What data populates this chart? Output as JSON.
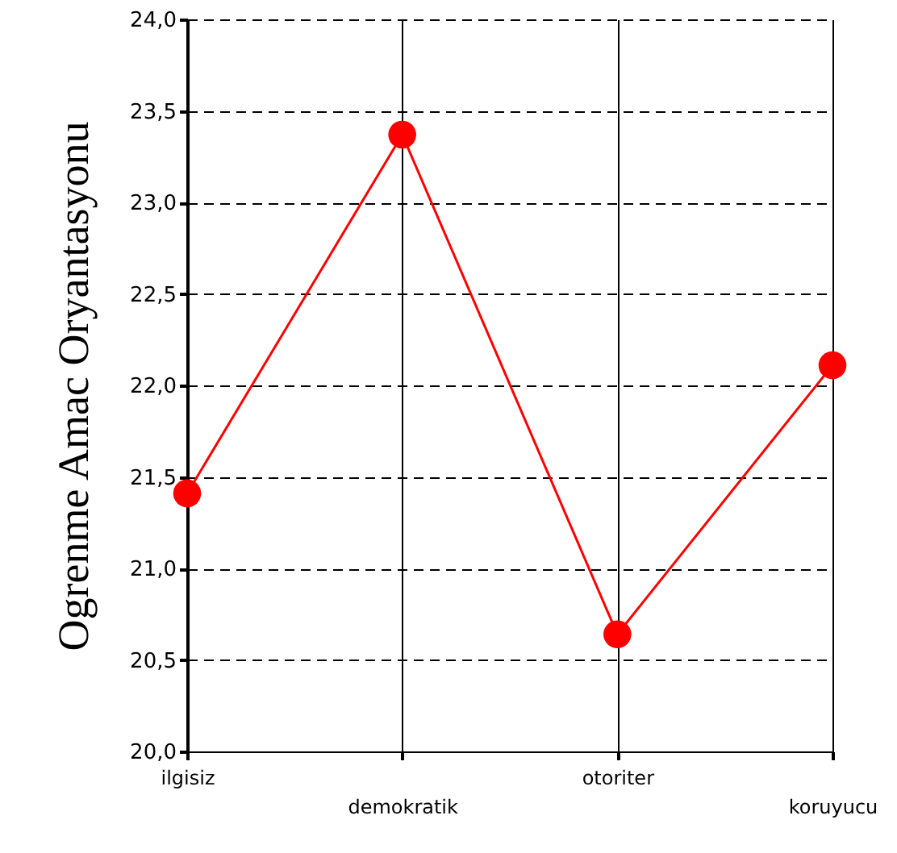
{
  "chart_data": {
    "type": "line",
    "ylabel": "Ogrenme Amac Oryantasyonu",
    "categories": [
      "ilgisiz",
      "demokratik",
      "otoriter",
      "koruyucu"
    ],
    "series": [
      {
        "color": "#ff0000",
        "values": [
          21.41,
          23.37,
          20.64,
          22.11
        ]
      }
    ],
    "ylim": [
      20,
      24
    ],
    "yticks": [
      {
        "value": 20,
        "label": "20,0"
      },
      {
        "value": 20.5,
        "label": "20,5"
      },
      {
        "value": 21,
        "label": "21,0"
      },
      {
        "value": 21.5,
        "label": "21,5"
      },
      {
        "value": 22,
        "label": "22,0"
      },
      {
        "value": 22.5,
        "label": "22,5"
      },
      {
        "value": 23,
        "label": "23,0"
      },
      {
        "value": 23.5,
        "label": "23,5"
      },
      {
        "value": 24,
        "label": "24,0"
      }
    ],
    "grid": true,
    "marker": "circle",
    "line_style": "solid"
  }
}
